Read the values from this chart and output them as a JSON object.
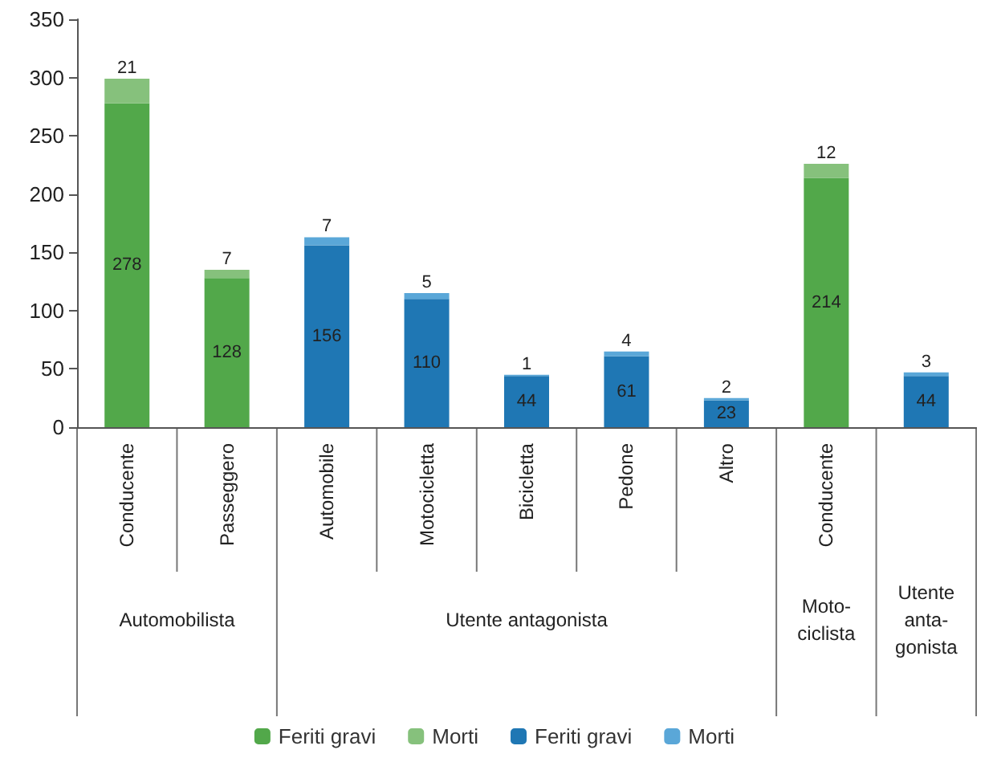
{
  "chart_data": {
    "type": "bar",
    "stacked": true,
    "categories": [
      "Conducente",
      "Passeggero",
      "Automobile",
      "Motocicletta",
      "Bicicletta",
      "Pedone",
      "Altro",
      "Conducente",
      null
    ],
    "series": [
      {
        "name": "Feriti gravi",
        "color": "#52a84a",
        "values": [
          278,
          128,
          null,
          null,
          null,
          null,
          null,
          214,
          null
        ]
      },
      {
        "name": "Morti",
        "color": "#86c17c",
        "values": [
          21,
          7,
          null,
          null,
          null,
          null,
          null,
          12,
          null
        ]
      },
      {
        "name": "Feriti gravi",
        "color": "#1f77b4",
        "values": [
          null,
          null,
          156,
          110,
          44,
          61,
          23,
          null,
          44
        ]
      },
      {
        "name": "Morti",
        "color": "#5aa7d8",
        "values": [
          null,
          null,
          7,
          5,
          1,
          4,
          2,
          null,
          3
        ]
      }
    ],
    "annotations": [
      "Automobilista",
      "Utente antagonista",
      "Moto-\nciclista",
      "Utente\nanta-\ngonista"
    ],
    "ylim": [
      0,
      350
    ],
    "yticks": [
      0,
      50,
      100,
      150,
      200,
      250,
      300,
      350
    ],
    "grid": false,
    "legend": "bottom",
    "data_labels": true
  }
}
